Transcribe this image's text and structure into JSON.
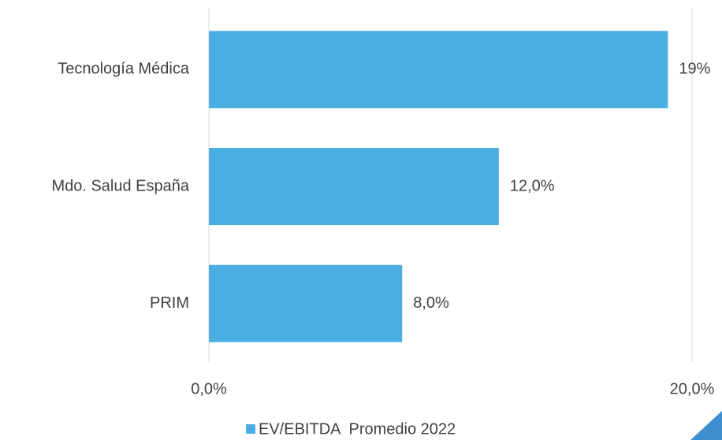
{
  "chart_data": {
    "type": "bar",
    "orientation": "horizontal",
    "categories": [
      "Tecnología Médica",
      "Mdo. Salud España",
      "PRIM"
    ],
    "series": [
      {
        "name": "EV/EBITDA  Promedio 2022",
        "color": "#4aafe0",
        "values": [
          19,
          12,
          8
        ],
        "value_labels": [
          "19%",
          "12,0%",
          "8,0%"
        ]
      }
    ],
    "xlim": [
      0,
      20
    ],
    "xticks": [
      {
        "value": 0,
        "label": "0,0%"
      },
      {
        "value": 20,
        "label": "20,0%"
      }
    ],
    "grid": true,
    "legend": "bottom"
  }
}
